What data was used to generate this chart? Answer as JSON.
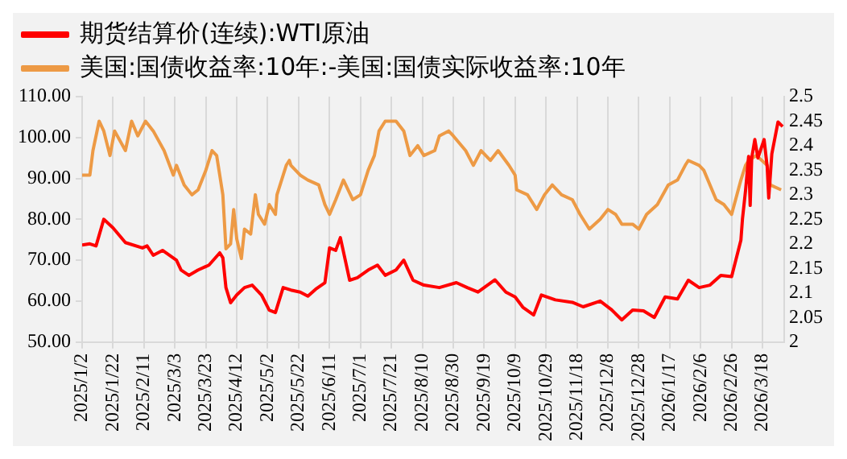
{
  "chart_data": {
    "type": "line",
    "legend": "top",
    "grid": "x",
    "marker": "none",
    "line_style": "solid",
    "xlim": [
      "2025-01-02",
      "2026-04-01"
    ],
    "xticks": [
      {
        "value": "2025-01-02",
        "label": "2025/1/2"
      },
      {
        "value": "2025-01-22",
        "label": "2025/1/22"
      },
      {
        "value": "2025-02-11",
        "label": "2025/2/11"
      },
      {
        "value": "2025-03-03",
        "label": "2025/3/3"
      },
      {
        "value": "2025-03-23",
        "label": "2025/3/23"
      },
      {
        "value": "2025-04-12",
        "label": "2025/4/12"
      },
      {
        "value": "2025-05-02",
        "label": "2025/5/2"
      },
      {
        "value": "2025-05-22",
        "label": "2025/5/22"
      },
      {
        "value": "2025-06-11",
        "label": "2025/6/11"
      },
      {
        "value": "2025-07-01",
        "label": "2025/7/1"
      },
      {
        "value": "2025-07-21",
        "label": "2025/7/21"
      },
      {
        "value": "2025-08-10",
        "label": "2025/8/10"
      },
      {
        "value": "2025-08-30",
        "label": "2025/8/30"
      },
      {
        "value": "2025-09-19",
        "label": "2025/9/19"
      },
      {
        "value": "2025-10-09",
        "label": "2025/10/9"
      },
      {
        "value": "2025-10-29",
        "label": "2025/10/29"
      },
      {
        "value": "2025-11-18",
        "label": "2025/11/18"
      },
      {
        "value": "2025-12-08",
        "label": "2025/12/8"
      },
      {
        "value": "2025-12-28",
        "label": "2025/12/28"
      },
      {
        "value": "2026-01-17",
        "label": "2026/1/17"
      },
      {
        "value": "2026-02-06",
        "label": "2026/2/6"
      },
      {
        "value": "2026-02-26",
        "label": "2026/2/26"
      },
      {
        "value": "2026-03-18",
        "label": "2026/3/18"
      }
    ],
    "ylim": [
      50,
      110
    ],
    "yticks": [
      {
        "value": 50,
        "label": "50.00"
      },
      {
        "value": 60,
        "label": "60.00"
      },
      {
        "value": 70,
        "label": "70.00"
      },
      {
        "value": 80,
        "label": "80.00"
      },
      {
        "value": 90,
        "label": "90.00"
      },
      {
        "value": 100,
        "label": "100.00"
      },
      {
        "value": 110,
        "label": "110.00"
      }
    ],
    "y2lim": [
      2,
      2.5
    ],
    "y2ticks": [
      2,
      2.05,
      2.1,
      2.15,
      2.2,
      2.25,
      2.3,
      2.35,
      2.4,
      2.45,
      2.5
    ],
    "series": [
      {
        "name": "期货结算价(连续):WTI原油",
        "color": "#ff0000",
        "x": [
          "2025-01-02",
          "2025-01-07",
          "2025-01-11",
          "2025-01-16",
          "2025-01-22",
          "2025-01-30",
          "2025-02-10",
          "2025-02-13",
          "2025-02-17",
          "2025-02-23",
          "2025-03-04",
          "2025-03-07",
          "2025-03-12",
          "2025-03-18",
          "2025-03-25",
          "2025-04-01",
          "2025-04-03",
          "2025-04-05",
          "2025-04-08",
          "2025-04-12",
          "2025-04-17",
          "2025-04-22",
          "2025-04-28",
          "2025-05-03",
          "2025-05-07",
          "2025-05-12",
          "2025-05-17",
          "2025-05-23",
          "2025-05-28",
          "2025-06-02",
          "2025-06-08",
          "2025-06-11",
          "2025-06-15",
          "2025-06-18",
          "2025-06-24",
          "2025-06-29",
          "2025-07-06",
          "2025-07-12",
          "2025-07-17",
          "2025-07-24",
          "2025-07-29",
          "2025-08-04",
          "2025-08-11",
          "2025-08-21",
          "2025-09-01",
          "2025-09-08",
          "2025-09-15",
          "2025-09-26",
          "2025-10-03",
          "2025-10-09",
          "2025-10-14",
          "2025-10-21",
          "2025-10-26",
          "2025-11-04",
          "2025-11-15",
          "2025-11-22",
          "2025-12-03",
          "2025-12-10",
          "2025-12-17",
          "2025-12-24",
          "2025-12-31",
          "2026-01-07",
          "2026-01-14",
          "2026-01-22",
          "2026-01-29",
          "2026-02-05",
          "2026-02-12",
          "2026-02-19",
          "2026-02-26",
          "2026-03-04",
          "2026-03-05",
          "2026-03-07",
          "2026-03-09",
          "2026-03-10",
          "2026-03-11",
          "2026-03-13",
          "2026-03-15",
          "2026-03-19",
          "2026-03-21",
          "2026-03-22",
          "2026-03-24",
          "2026-03-28",
          "2026-03-31"
        ],
        "values": [
          73.7,
          74,
          73.5,
          80,
          77.9,
          74.3,
          73,
          73.5,
          71.2,
          72.4,
          70,
          67.6,
          66.3,
          67.6,
          68.8,
          71.8,
          70.6,
          63.3,
          59.6,
          61.5,
          63.3,
          63.9,
          61.5,
          57.8,
          57.2,
          63.3,
          62.7,
          62.2,
          61.2,
          62.9,
          64.5,
          73,
          72.4,
          75.5,
          65.1,
          65.7,
          67.6,
          68.8,
          66.3,
          67.6,
          70,
          65.1,
          63.9,
          63.3,
          64.5,
          63.3,
          62.2,
          65.2,
          62.2,
          61,
          58.5,
          56.6,
          61.5,
          60.3,
          59.7,
          58.6,
          60,
          58,
          55.4,
          57.8,
          57.6,
          56,
          61,
          60.5,
          65.1,
          63.3,
          63.9,
          66.3,
          66,
          74.9,
          80,
          87,
          95.4,
          83.4,
          95,
          99.5,
          95,
          99.5,
          92.8,
          85.2,
          96,
          103.8,
          102.7
        ]
      },
      {
        "name": "美国:国债收益率:10年:-美国:国债实际收益率:10年",
        "color": "#ed9a45",
        "axis": "y2",
        "x": [
          "2025-01-02",
          "2025-01-07",
          "2025-01-09",
          "2025-01-13",
          "2025-01-16",
          "2025-01-20",
          "2025-01-23",
          "2025-01-30",
          "2025-02-03",
          "2025-02-07",
          "2025-02-12",
          "2025-02-17",
          "2025-02-24",
          "2025-03-02",
          "2025-03-04",
          "2025-03-09",
          "2025-03-14",
          "2025-03-18",
          "2025-03-23",
          "2025-03-27",
          "2025-03-30",
          "2025-04-01",
          "2025-04-03",
          "2025-04-05",
          "2025-04-08",
          "2025-04-10",
          "2025-04-12",
          "2025-04-15",
          "2025-04-17",
          "2025-04-21",
          "2025-04-24",
          "2025-04-26",
          "2025-04-30",
          "2025-05-03",
          "2025-05-07",
          "2025-05-08",
          "2025-05-14",
          "2025-05-16",
          "2025-05-17",
          "2025-05-23",
          "2025-05-28",
          "2025-06-04",
          "2025-06-08",
          "2025-06-11",
          "2025-06-15",
          "2025-06-20",
          "2025-06-26",
          "2025-07-01",
          "2025-07-06",
          "2025-07-10",
          "2025-07-13",
          "2025-07-17",
          "2025-07-24",
          "2025-07-29",
          "2025-08-02",
          "2025-08-07",
          "2025-08-11",
          "2025-08-18",
          "2025-08-21",
          "2025-08-27",
          "2025-08-30",
          "2025-09-07",
          "2025-09-12",
          "2025-09-17",
          "2025-09-23",
          "2025-09-28",
          "2025-10-05",
          "2025-10-09",
          "2025-10-10",
          "2025-10-17",
          "2025-10-23",
          "2025-10-28",
          "2025-11-02",
          "2025-11-08",
          "2025-11-15",
          "2025-11-20",
          "2025-11-26",
          "2025-12-03",
          "2025-12-08",
          "2025-12-13",
          "2025-12-17",
          "2025-12-24",
          "2025-12-28",
          "2026-01-02",
          "2026-01-09",
          "2026-01-16",
          "2026-01-22",
          "2026-01-27",
          "2026-01-29",
          "2026-02-05",
          "2026-02-08",
          "2026-02-16",
          "2026-02-21",
          "2026-02-26",
          "2026-03-04",
          "2026-03-07",
          "2026-03-09",
          "2026-03-14",
          "2026-03-21",
          "2026-03-23",
          "2026-03-30"
        ],
        "values": [
          2.34,
          2.34,
          2.39,
          2.45,
          2.43,
          2.38,
          2.43,
          2.39,
          2.45,
          2.42,
          2.45,
          2.43,
          2.39,
          2.34,
          2.36,
          2.32,
          2.3,
          2.31,
          2.35,
          2.39,
          2.38,
          2.34,
          2.3,
          2.19,
          2.2,
          2.27,
          2.21,
          2.17,
          2.23,
          2.22,
          2.3,
          2.26,
          2.24,
          2.28,
          2.26,
          2.3,
          2.36,
          2.37,
          2.36,
          2.34,
          2.33,
          2.32,
          2.28,
          2.26,
          2.29,
          2.33,
          2.29,
          2.3,
          2.35,
          2.38,
          2.43,
          2.45,
          2.45,
          2.43,
          2.38,
          2.4,
          2.38,
          2.39,
          2.42,
          2.43,
          2.42,
          2.39,
          2.36,
          2.39,
          2.37,
          2.39,
          2.36,
          2.34,
          2.31,
          2.3,
          2.27,
          2.3,
          2.32,
          2.3,
          2.29,
          2.26,
          2.23,
          2.25,
          2.27,
          2.26,
          2.24,
          2.24,
          2.23,
          2.26,
          2.28,
          2.32,
          2.33,
          2.36,
          2.37,
          2.36,
          2.35,
          2.29,
          2.28,
          2.26,
          2.33,
          2.36,
          2.37,
          2.38,
          2.36,
          2.32,
          2.31
        ]
      }
    ]
  }
}
